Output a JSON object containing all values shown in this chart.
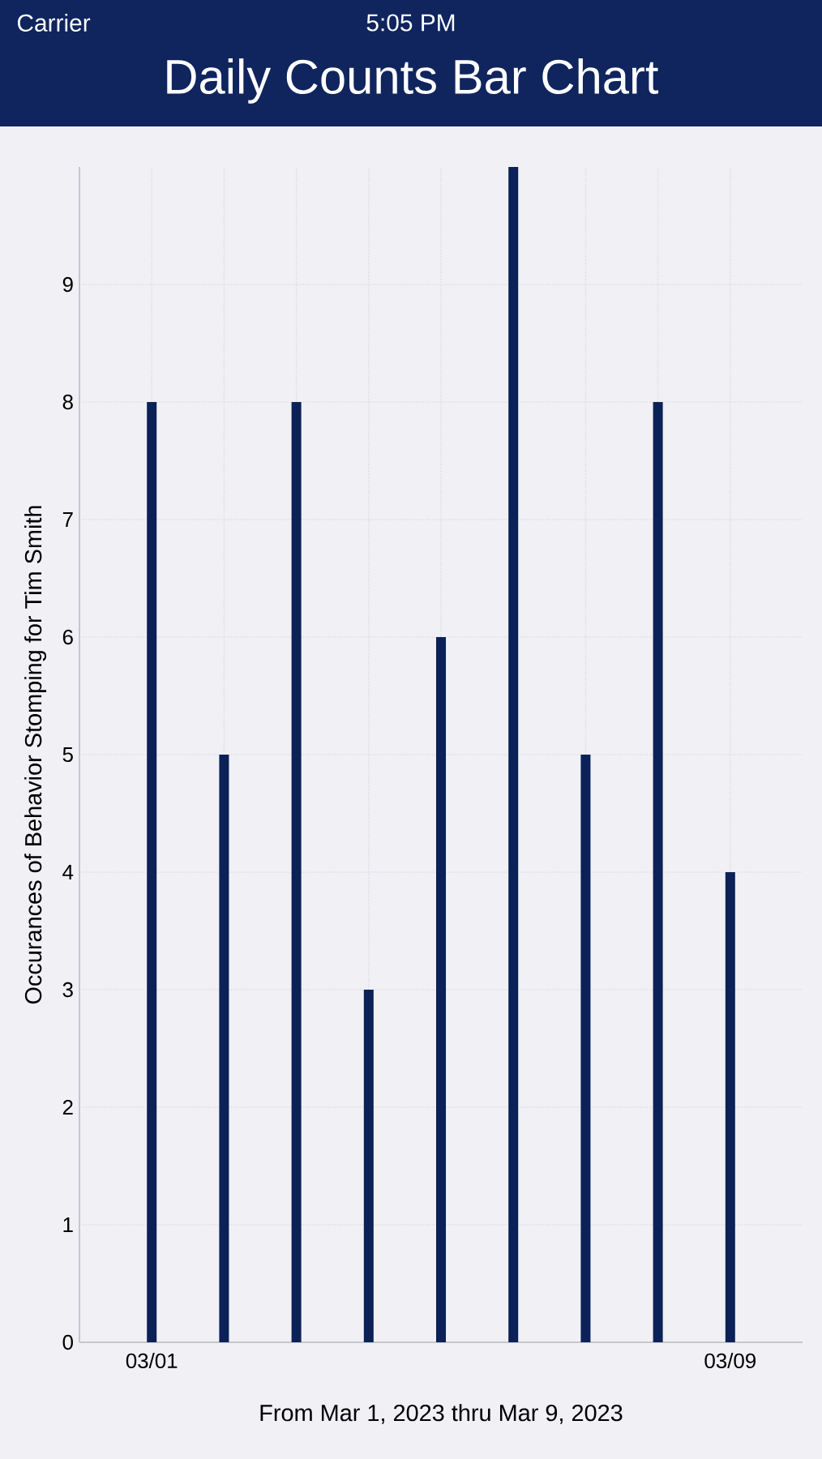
{
  "chart_data": {
    "type": "bar",
    "title": "Daily Counts Bar Chart",
    "xlabel": "From Mar 1, 2023 thru Mar 9, 2023",
    "ylabel": "Occurances of Behavior Stomping for Tim Smith",
    "categories": [
      "03/01",
      null,
      null,
      null,
      null,
      null,
      null,
      null,
      "03/09"
    ],
    "values": [
      8,
      5,
      8,
      3,
      6,
      10,
      5,
      8,
      4
    ],
    "color": "#0b2157",
    "ylim": [
      0,
      10
    ],
    "yticks": [
      0,
      1,
      2,
      3,
      4,
      5,
      6,
      7,
      8,
      9
    ],
    "grid": true,
    "annotations": [
      "Carrier",
      "5:05 PM"
    ]
  }
}
